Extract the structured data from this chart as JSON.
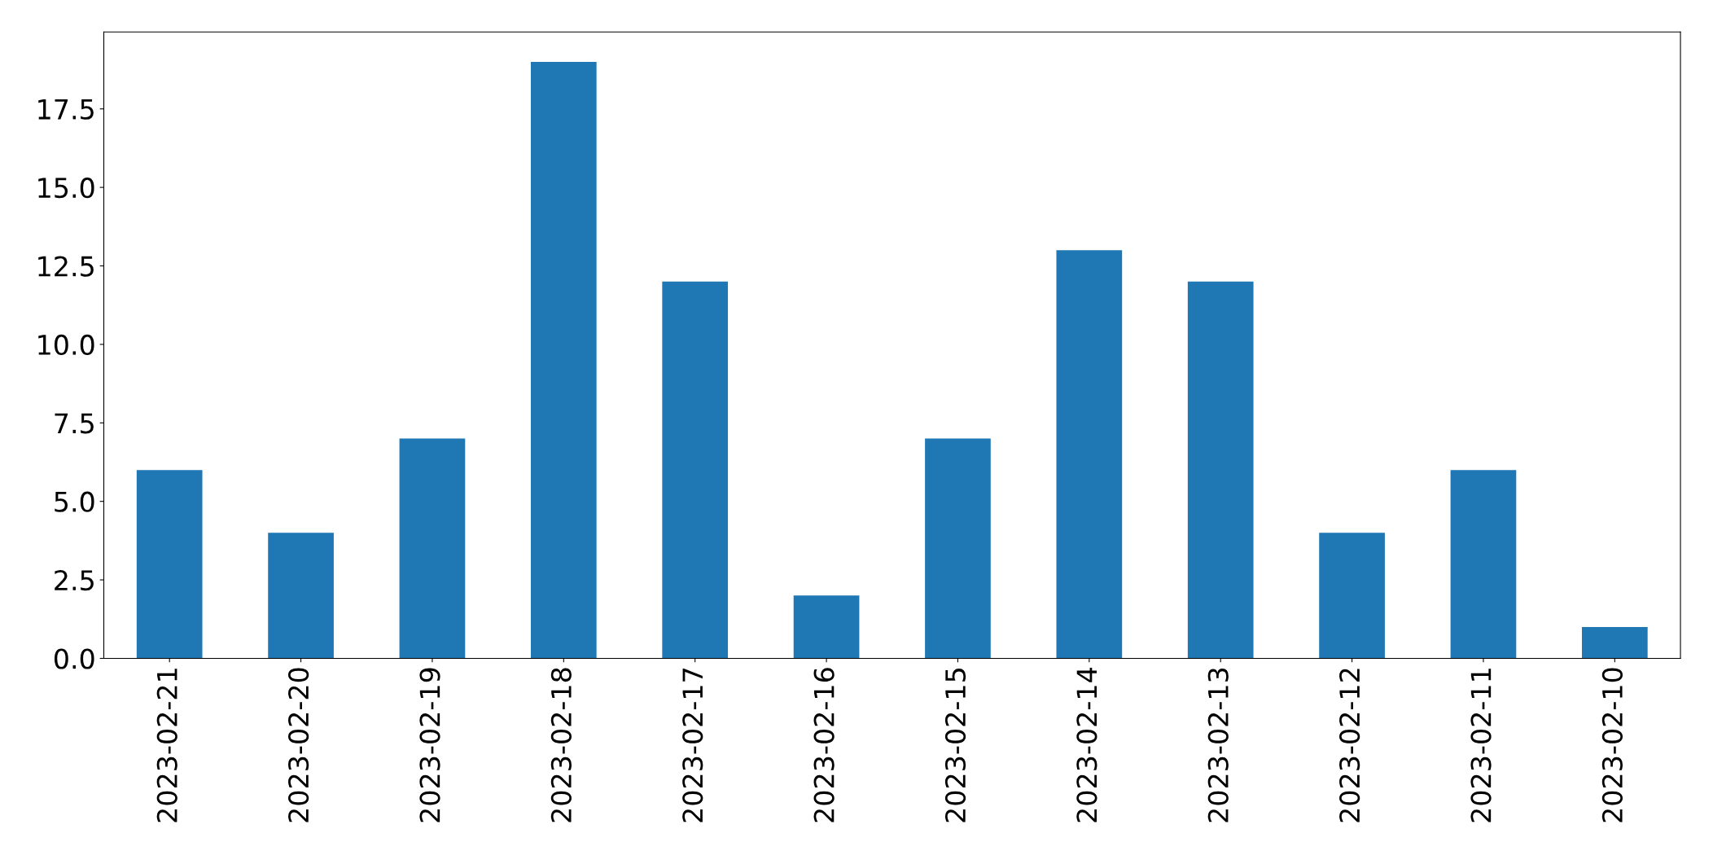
{
  "chart_data": {
    "type": "bar",
    "categories": [
      "2023-02-21",
      "2023-02-20",
      "2023-02-19",
      "2023-02-18",
      "2023-02-17",
      "2023-02-16",
      "2023-02-15",
      "2023-02-14",
      "2023-02-13",
      "2023-02-12",
      "2023-02-11",
      "2023-02-10"
    ],
    "values": [
      6,
      4,
      7,
      19,
      12,
      2,
      7,
      13,
      12,
      4,
      6,
      1
    ],
    "color": "#1f77b4",
    "ylim": [
      0,
      19.95
    ],
    "yticks": [
      {
        "value": 0,
        "label": "0.0"
      },
      {
        "value": 2.5,
        "label": "2.5"
      },
      {
        "value": 5,
        "label": "5.0"
      },
      {
        "value": 7.5,
        "label": "7.5"
      },
      {
        "value": 10,
        "label": "10.0"
      },
      {
        "value": 12.5,
        "label": "12.5"
      },
      {
        "value": 15,
        "label": "15.0"
      },
      {
        "value": 17.5,
        "label": "17.5"
      }
    ],
    "grid": false
  }
}
